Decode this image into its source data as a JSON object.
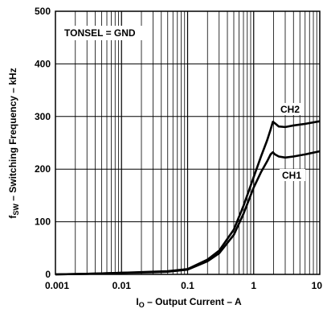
{
  "chart_data": {
    "type": "line",
    "x_scale": "log",
    "xlim": [
      0.001,
      10
    ],
    "ylim": [
      0,
      500
    ],
    "x_ticks": [
      {
        "value": 0.001,
        "label": "0.001"
      },
      {
        "value": 0.01,
        "label": "0.01"
      },
      {
        "value": 0.1,
        "label": "0.1"
      },
      {
        "value": 1,
        "label": "1"
      },
      {
        "value": 10,
        "label": "10"
      }
    ],
    "y_ticks": [
      {
        "value": 0,
        "label": "0"
      },
      {
        "value": 100,
        "label": "100"
      },
      {
        "value": 200,
        "label": "200"
      },
      {
        "value": 300,
        "label": "300"
      },
      {
        "value": 400,
        "label": "400"
      },
      {
        "value": 500,
        "label": "500"
      }
    ],
    "grid": "on (log minor x, major y)",
    "xlabel": {
      "main": "I",
      "sub": "O",
      "rest": " – Output Current – A"
    },
    "ylabel": {
      "main": "f",
      "sub": "SW",
      "rest": " – Switching Frequency – kHz"
    },
    "annotation": "TONSEL = GND",
    "series": [
      {
        "name": "CH2",
        "points": [
          [
            0.001,
            0
          ],
          [
            0.003,
            1
          ],
          [
            0.01,
            3
          ],
          [
            0.03,
            5
          ],
          [
            0.05,
            6
          ],
          [
            0.1,
            10
          ],
          [
            0.2,
            28
          ],
          [
            0.3,
            45
          ],
          [
            0.5,
            85
          ],
          [
            0.7,
            130
          ],
          [
            1.0,
            185
          ],
          [
            1.3,
            225
          ],
          [
            1.6,
            255
          ],
          [
            1.8,
            275
          ],
          [
            1.95,
            290
          ],
          [
            2.1,
            287
          ],
          [
            2.4,
            281
          ],
          [
            3,
            280
          ],
          [
            4,
            283
          ],
          [
            6,
            286
          ],
          [
            10,
            291
          ]
        ]
      },
      {
        "name": "CH1",
        "points": [
          [
            0.001,
            0
          ],
          [
            0.003,
            1
          ],
          [
            0.01,
            3
          ],
          [
            0.03,
            4
          ],
          [
            0.05,
            5
          ],
          [
            0.1,
            9
          ],
          [
            0.2,
            25
          ],
          [
            0.3,
            40
          ],
          [
            0.5,
            75
          ],
          [
            0.7,
            115
          ],
          [
            1.0,
            165
          ],
          [
            1.3,
            195
          ],
          [
            1.6,
            215
          ],
          [
            1.8,
            228
          ],
          [
            1.95,
            232
          ],
          [
            2.1,
            228
          ],
          [
            2.4,
            224
          ],
          [
            3,
            222
          ],
          [
            4,
            224
          ],
          [
            6,
            228
          ],
          [
            10,
            234
          ]
        ]
      }
    ]
  }
}
